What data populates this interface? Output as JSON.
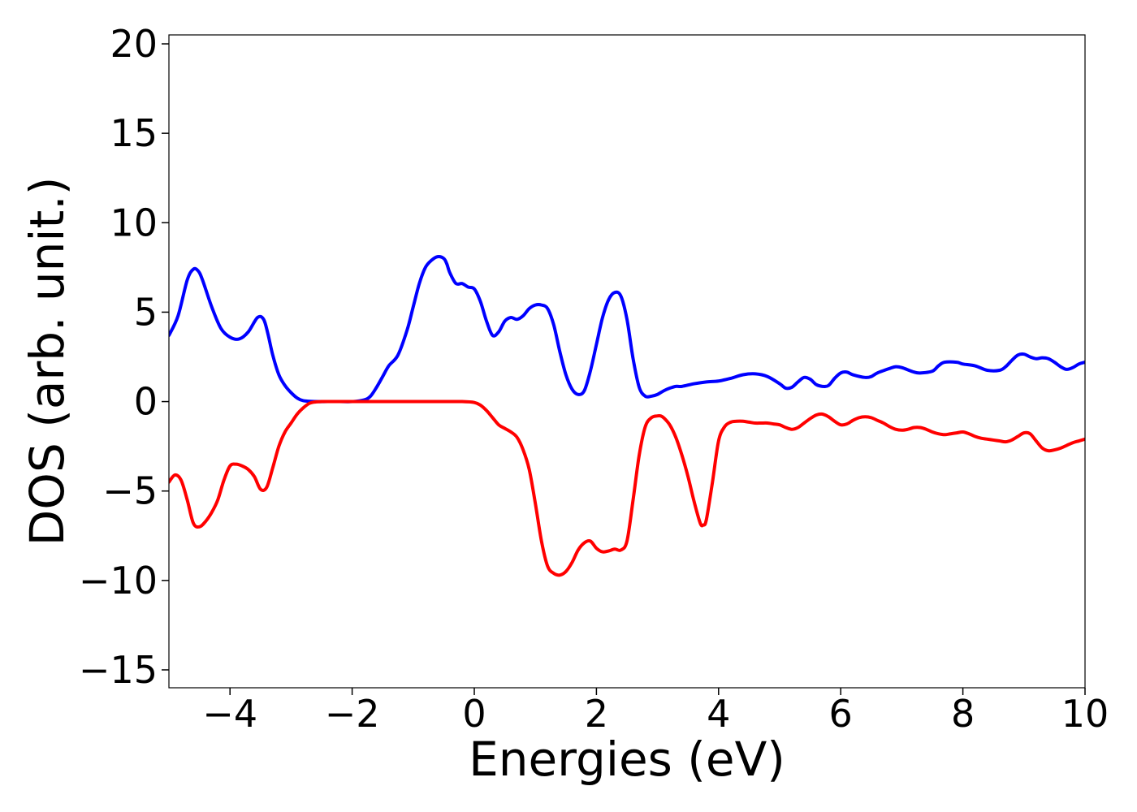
{
  "chart_data": {
    "type": "line",
    "title": "",
    "xlabel": "Energies (eV)",
    "ylabel": "DOS (arb. unit.)",
    "xlim": [
      -5,
      10
    ],
    "ylim": [
      -16,
      20.5
    ],
    "xticks": [
      -4,
      -2,
      0,
      2,
      4,
      6,
      8,
      10
    ],
    "xtick_labels": [
      "−4",
      "−2",
      "0",
      "2",
      "4",
      "6",
      "8",
      "10"
    ],
    "yticks": [
      -15,
      -10,
      -5,
      0,
      5,
      10,
      15,
      20
    ],
    "ytick_labels": [
      "−15",
      "−10",
      "−5",
      "0",
      "5",
      "10",
      "15",
      "20"
    ],
    "grid": false,
    "legend": "none",
    "series": [
      {
        "color": "#0000ff",
        "x": [
          -5.0,
          -4.85,
          -4.7,
          -4.6,
          -4.52,
          -4.45,
          -4.3,
          -4.15,
          -4.0,
          -3.85,
          -3.7,
          -3.55,
          -3.45,
          -3.38,
          -3.3,
          -3.2,
          -3.1,
          -3.0,
          -2.9,
          -2.8,
          -2.6,
          -2.4,
          -2.2,
          -2.0,
          -1.8,
          -1.7,
          -1.6,
          -1.5,
          -1.4,
          -1.25,
          -1.1,
          -1.0,
          -0.9,
          -0.8,
          -0.7,
          -0.6,
          -0.5,
          -0.45,
          -0.4,
          -0.3,
          -0.2,
          -0.1,
          0.0,
          0.1,
          0.2,
          0.3,
          0.4,
          0.5,
          0.6,
          0.7,
          0.8,
          0.9,
          1.0,
          1.1,
          1.2,
          1.3,
          1.4,
          1.5,
          1.6,
          1.7,
          1.8,
          1.9,
          2.0,
          2.1,
          2.2,
          2.3,
          2.4,
          2.5,
          2.6,
          2.7,
          2.8,
          2.9,
          3.0,
          3.1,
          3.2,
          3.3,
          3.4,
          3.6,
          3.8,
          4.0,
          4.2,
          4.4,
          4.6,
          4.8,
          5.0,
          5.1,
          5.2,
          5.3,
          5.4,
          5.5,
          5.6,
          5.7,
          5.8,
          5.9,
          6.0,
          6.1,
          6.2,
          6.4,
          6.5,
          6.6,
          6.8,
          6.9,
          7.0,
          7.2,
          7.3,
          7.5,
          7.6,
          7.7,
          7.9,
          8.0,
          8.2,
          8.4,
          8.6,
          8.7,
          8.8,
          8.9,
          9.0,
          9.1,
          9.2,
          9.3,
          9.4,
          9.5,
          9.6,
          9.7,
          9.8,
          9.9,
          10.0
        ],
        "values": [
          3.7,
          4.8,
          6.8,
          7.4,
          7.3,
          6.8,
          5.3,
          4.1,
          3.6,
          3.5,
          3.9,
          4.7,
          4.6,
          3.8,
          2.6,
          1.5,
          0.9,
          0.5,
          0.2,
          0.05,
          0.0,
          0.0,
          0.0,
          0.0,
          0.1,
          0.3,
          0.8,
          1.4,
          2.0,
          2.6,
          4.0,
          5.3,
          6.6,
          7.5,
          7.9,
          8.1,
          8.0,
          7.7,
          7.2,
          6.6,
          6.6,
          6.4,
          6.3,
          5.6,
          4.5,
          3.7,
          3.9,
          4.5,
          4.7,
          4.6,
          4.8,
          5.2,
          5.4,
          5.4,
          5.2,
          4.3,
          2.8,
          1.5,
          0.7,
          0.4,
          0.6,
          1.7,
          3.2,
          4.7,
          5.7,
          6.1,
          5.9,
          4.6,
          2.4,
          0.8,
          0.3,
          0.3,
          0.4,
          0.6,
          0.75,
          0.85,
          0.85,
          1.0,
          1.1,
          1.15,
          1.3,
          1.5,
          1.55,
          1.4,
          1.0,
          0.75,
          0.8,
          1.1,
          1.35,
          1.25,
          0.95,
          0.85,
          0.9,
          1.3,
          1.6,
          1.65,
          1.5,
          1.35,
          1.4,
          1.6,
          1.85,
          1.95,
          1.9,
          1.65,
          1.6,
          1.7,
          2.0,
          2.2,
          2.2,
          2.1,
          2.0,
          1.75,
          1.75,
          1.95,
          2.3,
          2.6,
          2.65,
          2.5,
          2.4,
          2.45,
          2.4,
          2.2,
          1.95,
          1.8,
          1.9,
          2.1,
          2.2
        ]
      },
      {
        "color": "#ff0000",
        "x": [
          -5.0,
          -4.9,
          -4.8,
          -4.7,
          -4.6,
          -4.5,
          -4.4,
          -4.3,
          -4.2,
          -4.1,
          -4.0,
          -3.9,
          -3.8,
          -3.7,
          -3.6,
          -3.5,
          -3.4,
          -3.3,
          -3.2,
          -3.1,
          -3.0,
          -2.9,
          -2.8,
          -2.7,
          -2.6,
          -2.5,
          -2.3,
          -2.0,
          -1.5,
          -1.0,
          -0.5,
          -0.2,
          0.0,
          0.1,
          0.2,
          0.3,
          0.4,
          0.5,
          0.6,
          0.7,
          0.8,
          0.9,
          1.0,
          1.1,
          1.2,
          1.3,
          1.4,
          1.5,
          1.6,
          1.7,
          1.8,
          1.9,
          2.0,
          2.1,
          2.2,
          2.3,
          2.4,
          2.5,
          2.6,
          2.7,
          2.8,
          2.9,
          3.0,
          3.05,
          3.1,
          3.2,
          3.3,
          3.4,
          3.5,
          3.6,
          3.7,
          3.75,
          3.8,
          3.9,
          4.0,
          4.1,
          4.2,
          4.3,
          4.4,
          4.5,
          4.6,
          4.7,
          4.8,
          4.9,
          5.0,
          5.1,
          5.2,
          5.3,
          5.4,
          5.5,
          5.6,
          5.7,
          5.8,
          5.9,
          6.0,
          6.1,
          6.2,
          6.3,
          6.4,
          6.5,
          6.6,
          6.7,
          6.8,
          6.9,
          7.0,
          7.1,
          7.2,
          7.3,
          7.4,
          7.5,
          7.6,
          7.7,
          7.8,
          7.9,
          8.0,
          8.1,
          8.2,
          8.3,
          8.4,
          8.5,
          8.6,
          8.7,
          8.8,
          8.9,
          9.0,
          9.1,
          9.2,
          9.3,
          9.4,
          9.5,
          9.6,
          9.7,
          9.8,
          9.9,
          10.0
        ],
        "values": [
          -4.5,
          -4.1,
          -4.4,
          -5.5,
          -6.8,
          -7.0,
          -6.7,
          -6.2,
          -5.5,
          -4.4,
          -3.6,
          -3.5,
          -3.6,
          -3.8,
          -4.2,
          -4.9,
          -4.8,
          -3.7,
          -2.5,
          -1.7,
          -1.2,
          -0.7,
          -0.35,
          -0.1,
          -0.02,
          0.0,
          0.0,
          0.0,
          0.0,
          0.0,
          0.0,
          0.0,
          -0.05,
          -0.2,
          -0.5,
          -0.9,
          -1.3,
          -1.5,
          -1.7,
          -2.0,
          -2.7,
          -3.8,
          -5.7,
          -7.8,
          -9.2,
          -9.6,
          -9.7,
          -9.5,
          -9.0,
          -8.3,
          -7.9,
          -7.8,
          -8.2,
          -8.4,
          -8.35,
          -8.25,
          -8.3,
          -7.8,
          -5.5,
          -3.0,
          -1.4,
          -0.9,
          -0.8,
          -0.8,
          -0.9,
          -1.3,
          -2.0,
          -3.0,
          -4.2,
          -5.6,
          -6.8,
          -6.9,
          -6.6,
          -4.5,
          -2.2,
          -1.4,
          -1.15,
          -1.1,
          -1.1,
          -1.15,
          -1.2,
          -1.2,
          -1.2,
          -1.25,
          -1.3,
          -1.45,
          -1.55,
          -1.45,
          -1.2,
          -0.95,
          -0.75,
          -0.7,
          -0.85,
          -1.1,
          -1.3,
          -1.25,
          -1.05,
          -0.9,
          -0.85,
          -0.9,
          -1.05,
          -1.2,
          -1.4,
          -1.55,
          -1.6,
          -1.55,
          -1.45,
          -1.45,
          -1.55,
          -1.7,
          -1.8,
          -1.85,
          -1.8,
          -1.75,
          -1.7,
          -1.8,
          -1.95,
          -2.05,
          -2.1,
          -2.15,
          -2.2,
          -2.25,
          -2.15,
          -1.95,
          -1.75,
          -1.8,
          -2.2,
          -2.6,
          -2.75,
          -2.7,
          -2.6,
          -2.45,
          -2.3,
          -2.2,
          -2.1
        ]
      }
    ]
  }
}
